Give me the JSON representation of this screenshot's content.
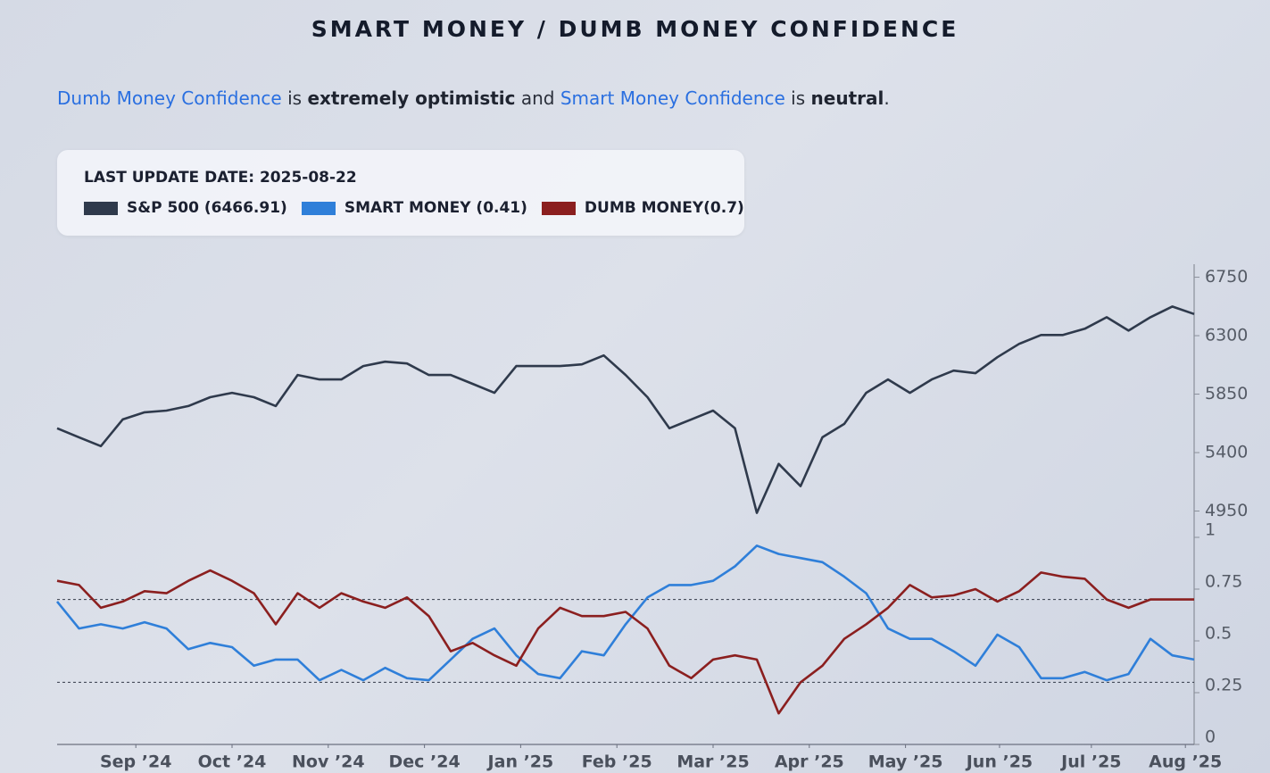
{
  "chart_data": {
    "type": "line",
    "title": "SMART MONEY / DUMB MONEY CONFIDENCE",
    "summary": [
      {
        "text": "Dumb Money Confidence",
        "style": "link"
      },
      {
        "text": " is ",
        "style": "plain"
      },
      {
        "text": "extremely optimistic",
        "style": "bold"
      },
      {
        "text": " and ",
        "style": "plain"
      },
      {
        "text": "Smart Money Confidence",
        "style": "link"
      },
      {
        "text": " is ",
        "style": "plain"
      },
      {
        "text": "neutral",
        "style": "bold"
      },
      {
        "text": ".",
        "style": "plain"
      }
    ],
    "last_update": "LAST UPDATE DATE: 2025-08-22",
    "xlim": [
      0,
      52
    ],
    "xticks": [
      {
        "value": 3.6,
        "label": "Sep ’24"
      },
      {
        "value": 8,
        "label": "Oct ’24"
      },
      {
        "value": 12.4,
        "label": "Nov ’24"
      },
      {
        "value": 16.8,
        "label": "Dec ’24"
      },
      {
        "value": 21.2,
        "label": "Jan ’25"
      },
      {
        "value": 25.6,
        "label": "Feb ’25"
      },
      {
        "value": 30,
        "label": "Mar ’25"
      },
      {
        "value": 34.4,
        "label": "Apr ’25"
      },
      {
        "value": 38.8,
        "label": "May ’25"
      },
      {
        "value": 43.1,
        "label": "Jun ’25"
      },
      {
        "value": 47.3,
        "label": "Jul ’25"
      },
      {
        "value": 51.6,
        "label": "Aug ’25"
      }
    ],
    "ylim": [
      4830,
      6850
    ],
    "yticks": [
      4950,
      5400,
      5850,
      6300,
      6750
    ],
    "y2lim": [
      0,
      1
    ],
    "y2ticks": [
      0,
      0.25,
      0.5,
      0.75,
      1
    ],
    "reference_lines": [
      0.3,
      0.7
    ],
    "series": [
      {
        "name": "S&P 500 (6466.91)",
        "color": "#2f3a4c",
        "axis": "y",
        "values": [
          5587,
          5518,
          5450,
          5655,
          5710,
          5723,
          5758,
          5826,
          5860,
          5826,
          5758,
          5997,
          5963,
          5963,
          6066,
          6100,
          6086,
          5997,
          5997,
          5929,
          5860,
          6066,
          6066,
          6066,
          6079,
          6148,
          5997,
          5826,
          5587,
          5655,
          5723,
          5587,
          4936,
          5313,
          5142,
          5518,
          5621,
          5860,
          5963,
          5860,
          5963,
          6031,
          6011,
          6134,
          6237,
          6305,
          6305,
          6353,
          6442,
          6339,
          6442,
          6524,
          6466.91
        ]
      },
      {
        "name": "SMART MONEY (0.41)",
        "color": "#2f7fd9",
        "axis": "y2",
        "values": [
          0.69,
          0.56,
          0.58,
          0.56,
          0.59,
          0.56,
          0.46,
          0.49,
          0.47,
          0.38,
          0.41,
          0.41,
          0.31,
          0.36,
          0.31,
          0.37,
          0.32,
          0.31,
          0.41,
          0.51,
          0.56,
          0.43,
          0.34,
          0.32,
          0.45,
          0.43,
          0.58,
          0.71,
          0.77,
          0.77,
          0.79,
          0.86,
          0.96,
          0.92,
          0.9,
          0.88,
          0.81,
          0.73,
          0.56,
          0.51,
          0.51,
          0.45,
          0.38,
          0.53,
          0.47,
          0.32,
          0.32,
          0.35,
          0.31,
          0.34,
          0.51,
          0.43,
          0.41
        ]
      },
      {
        "name": "DUMB MONEY(0.7)",
        "color": "#8b1f1f",
        "axis": "y2",
        "values": [
          0.79,
          0.77,
          0.66,
          0.69,
          0.74,
          0.73,
          0.79,
          0.84,
          0.79,
          0.73,
          0.58,
          0.73,
          0.66,
          0.73,
          0.69,
          0.66,
          0.71,
          0.62,
          0.45,
          0.49,
          0.43,
          0.38,
          0.56,
          0.66,
          0.62,
          0.62,
          0.64,
          0.56,
          0.38,
          0.32,
          0.41,
          0.43,
          0.41,
          0.15,
          0.3,
          0.38,
          0.51,
          0.58,
          0.66,
          0.77,
          0.71,
          0.72,
          0.75,
          0.69,
          0.74,
          0.83,
          0.81,
          0.8,
          0.7,
          0.66,
          0.7,
          0.7,
          0.7
        ]
      }
    ]
  }
}
